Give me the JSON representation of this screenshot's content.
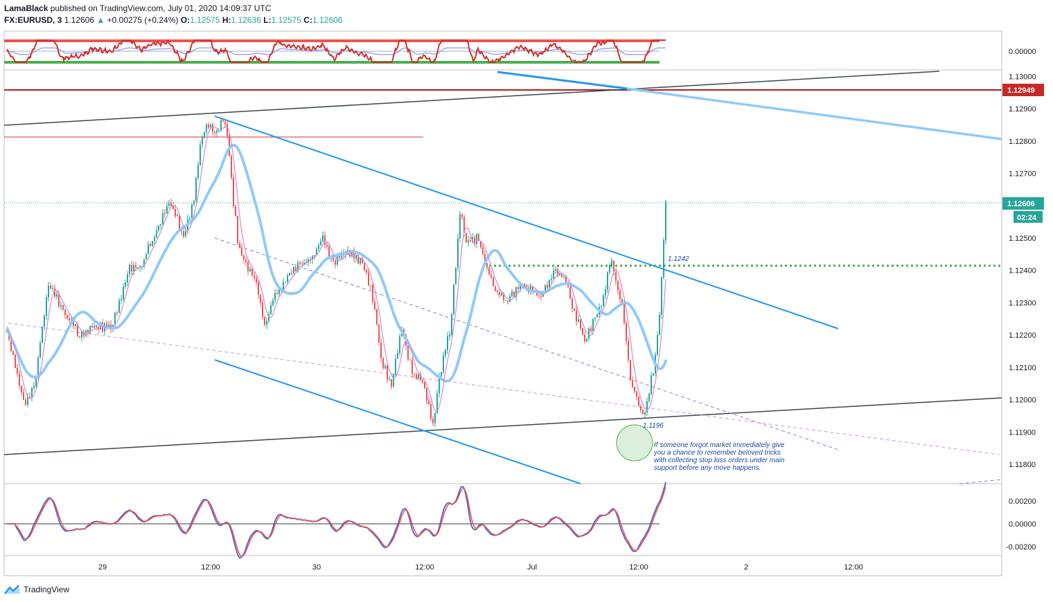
{
  "header": {
    "publisher": "LamaBlack",
    "published_text": "published on TradingView.com, July 01, 2020 14:09:37 UTC",
    "symbol": "FX:EURUSD, 3",
    "last": "1.12606",
    "arrow": "▲",
    "change": "+0.00275 (+0.24%)",
    "o_label": "O:",
    "o_value": "1.12575",
    "h_label": "H:",
    "h_value": "1.12636",
    "l_label": "L:",
    "l_value": "1.12575",
    "c_label": "C:",
    "c_value": "1.12606"
  },
  "footer": {
    "brand": "TradingView",
    "logo_icon": "tradingview-logo-icon"
  },
  "colors": {
    "up": "#26a69a",
    "down": "#ef5350",
    "channel": "#2196f3",
    "channel_light": "#90caf9",
    "wedge": "#37474f",
    "resistance": "#b71c1c",
    "level": "#e57373",
    "support_dots": "#4caf50",
    "ma_fast": "#ce93d8",
    "ma_slow": "#90caf9",
    "dashed": "#9575cd",
    "text_blue": "#1848a8"
  },
  "chart_data": [
    {
      "type": "line",
      "panel": "oscillator-top",
      "ylabels": [
        "0.00000"
      ],
      "series": [],
      "band_colors": {
        "upper": "#ef5350",
        "lower": "#4caf50",
        "signal": "#9fa8da"
      }
    },
    {
      "type": "candlestick",
      "panel": "main",
      "symbol": "FX:EURUSD",
      "interval": "3",
      "x_ticks": [
        "29",
        "12:00",
        "30",
        "12:00",
        "Jul",
        "12:00",
        "2",
        "12:00"
      ],
      "y_ticks": [
        "1.13000",
        "1.12900",
        "1.12800",
        "1.12700",
        "1.12500",
        "1.12400",
        "1.12300",
        "1.12200",
        "1.12100",
        "1.12000",
        "1.11900",
        "1.11800"
      ],
      "ylim": [
        1.1174,
        1.1302
      ],
      "badges": {
        "resistance": "1.12949",
        "last_price": "1.12606",
        "countdown": "02:24"
      },
      "levels": {
        "resistance": 1.12949,
        "last_price": 1.12606,
        "breakout": 1.1242,
        "low": 1.1196,
        "old_high": 1.12808
      },
      "annotations": {
        "breakout_label": "1.1242",
        "low_label": "1.1196",
        "note": [
          "If someone forgot market immediately give",
          "you a chance to remember beloved tricks",
          "with collecting stop loss orders under main",
          "support before any move happens."
        ]
      },
      "price_path": [
        [
          0,
          1.1222
        ],
        [
          14,
          1.1208
        ],
        [
          25,
          1.1198
        ],
        [
          40,
          1.1205
        ],
        [
          60,
          1.1236
        ],
        [
          80,
          1.1228
        ],
        [
          105,
          1.122
        ],
        [
          130,
          1.1223
        ],
        [
          150,
          1.1222
        ],
        [
          160,
          1.1228
        ],
        [
          175,
          1.124
        ],
        [
          195,
          1.1242
        ],
        [
          215,
          1.1252
        ],
        [
          235,
          1.1262
        ],
        [
          255,
          1.125
        ],
        [
          270,
          1.1262
        ],
        [
          280,
          1.128
        ],
        [
          290,
          1.1286
        ],
        [
          300,
          1.1282
        ],
        [
          312,
          1.1286
        ],
        [
          318,
          1.1282
        ],
        [
          325,
          1.1265
        ],
        [
          335,
          1.1246
        ],
        [
          345,
          1.1242
        ],
        [
          360,
          1.1236
        ],
        [
          372,
          1.1222
        ],
        [
          385,
          1.1232
        ],
        [
          400,
          1.1236
        ],
        [
          420,
          1.1242
        ],
        [
          440,
          1.1244
        ],
        [
          455,
          1.125
        ],
        [
          470,
          1.1242
        ],
        [
          490,
          1.1246
        ],
        [
          515,
          1.1242
        ],
        [
          530,
          1.123
        ],
        [
          540,
          1.1212
        ],
        [
          555,
          1.1204
        ],
        [
          570,
          1.1222
        ],
        [
          585,
          1.1208
        ],
        [
          600,
          1.1206
        ],
        [
          615,
          1.1192
        ],
        [
          625,
          1.1208
        ],
        [
          640,
          1.1222
        ],
        [
          655,
          1.126
        ],
        [
          662,
          1.1248
        ],
        [
          680,
          1.125
        ],
        [
          700,
          1.1236
        ],
        [
          720,
          1.123
        ],
        [
          745,
          1.1236
        ],
        [
          770,
          1.1232
        ],
        [
          790,
          1.124
        ],
        [
          805,
          1.1238
        ],
        [
          820,
          1.1226
        ],
        [
          835,
          1.1218
        ],
        [
          850,
          1.1226
        ],
        [
          862,
          1.1232
        ],
        [
          872,
          1.1244
        ],
        [
          880,
          1.1236
        ],
        [
          890,
          1.1226
        ],
        [
          900,
          1.1206
        ],
        [
          910,
          1.12
        ],
        [
          917,
          1.1194
        ],
        [
          925,
          1.12
        ],
        [
          935,
          1.1212
        ],
        [
          942,
          1.1226
        ],
        [
          948,
          1.125
        ],
        [
          951,
          1.1261
        ]
      ]
    },
    {
      "type": "line",
      "panel": "oscillator-bottom",
      "ylabels": [
        "0.00200",
        "0.00000",
        "-0.00200"
      ],
      "ylim": [
        -0.0029,
        0.003
      ],
      "series": []
    }
  ]
}
